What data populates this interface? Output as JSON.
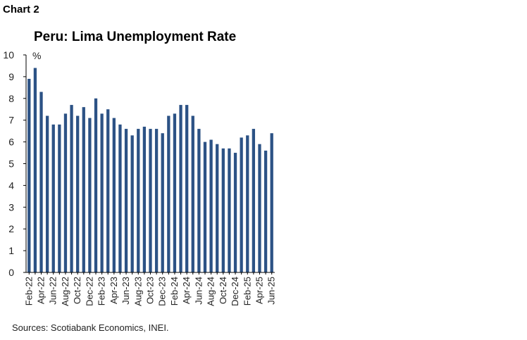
{
  "header": {
    "chart_label": "Chart 2"
  },
  "chart_data": {
    "type": "bar",
    "title": "Peru: Lima Unemployment Rate",
    "unit_label": "%",
    "ylim": [
      0,
      10
    ],
    "yticks": [
      0,
      1,
      2,
      3,
      4,
      5,
      6,
      7,
      8,
      9,
      10
    ],
    "grid": false,
    "bar_color": "#2c5285",
    "categories": [
      "Feb-22",
      "Mar-22",
      "Apr-22",
      "May-22",
      "Jun-22",
      "Jul-22",
      "Aug-22",
      "Sep-22",
      "Oct-22",
      "Nov-22",
      "Dec-22",
      "Jan-23",
      "Feb-23",
      "Mar-23",
      "Apr-23",
      "May-23",
      "Jun-23",
      "Jul-23",
      "Aug-23",
      "Sep-23",
      "Oct-23",
      "Nov-23",
      "Dec-23",
      "Jan-24",
      "Feb-24",
      "Mar-24",
      "Apr-24",
      "May-24",
      "Jun-24",
      "Jul-24",
      "Aug-24",
      "Sep-24",
      "Oct-24",
      "Nov-24",
      "Dec-24",
      "Jan-25",
      "Feb-25",
      "Mar-25",
      "Apr-25",
      "May-25",
      "Jun-25"
    ],
    "values": [
      8.9,
      9.4,
      8.3,
      7.2,
      6.8,
      6.8,
      7.3,
      7.7,
      7.2,
      7.6,
      7.1,
      8.0,
      7.3,
      7.5,
      7.1,
      6.8,
      6.6,
      6.3,
      6.6,
      6.7,
      6.6,
      6.6,
      6.4,
      7.2,
      7.3,
      7.7,
      7.7,
      7.2,
      6.6,
      6.0,
      6.1,
      5.9,
      5.7,
      5.7,
      5.5,
      6.2,
      6.3,
      6.6,
      5.9,
      5.6,
      6.4
    ],
    "xtick_labels": [
      "Feb-22",
      "Apr-22",
      "Jun-22",
      "Aug-22",
      "Oct-22",
      "Dec-22",
      "Feb-23",
      "Apr-23",
      "Jun-23",
      "Aug-23",
      "Oct-23",
      "Dec-23",
      "Feb-24",
      "Apr-24",
      "Jun-24",
      "Aug-24",
      "Oct-24",
      "Dec-24",
      "Feb-25",
      "Apr-25",
      "Jun-25"
    ]
  },
  "footer": {
    "source": "Sources: Scotiabank Economics, INEI."
  }
}
